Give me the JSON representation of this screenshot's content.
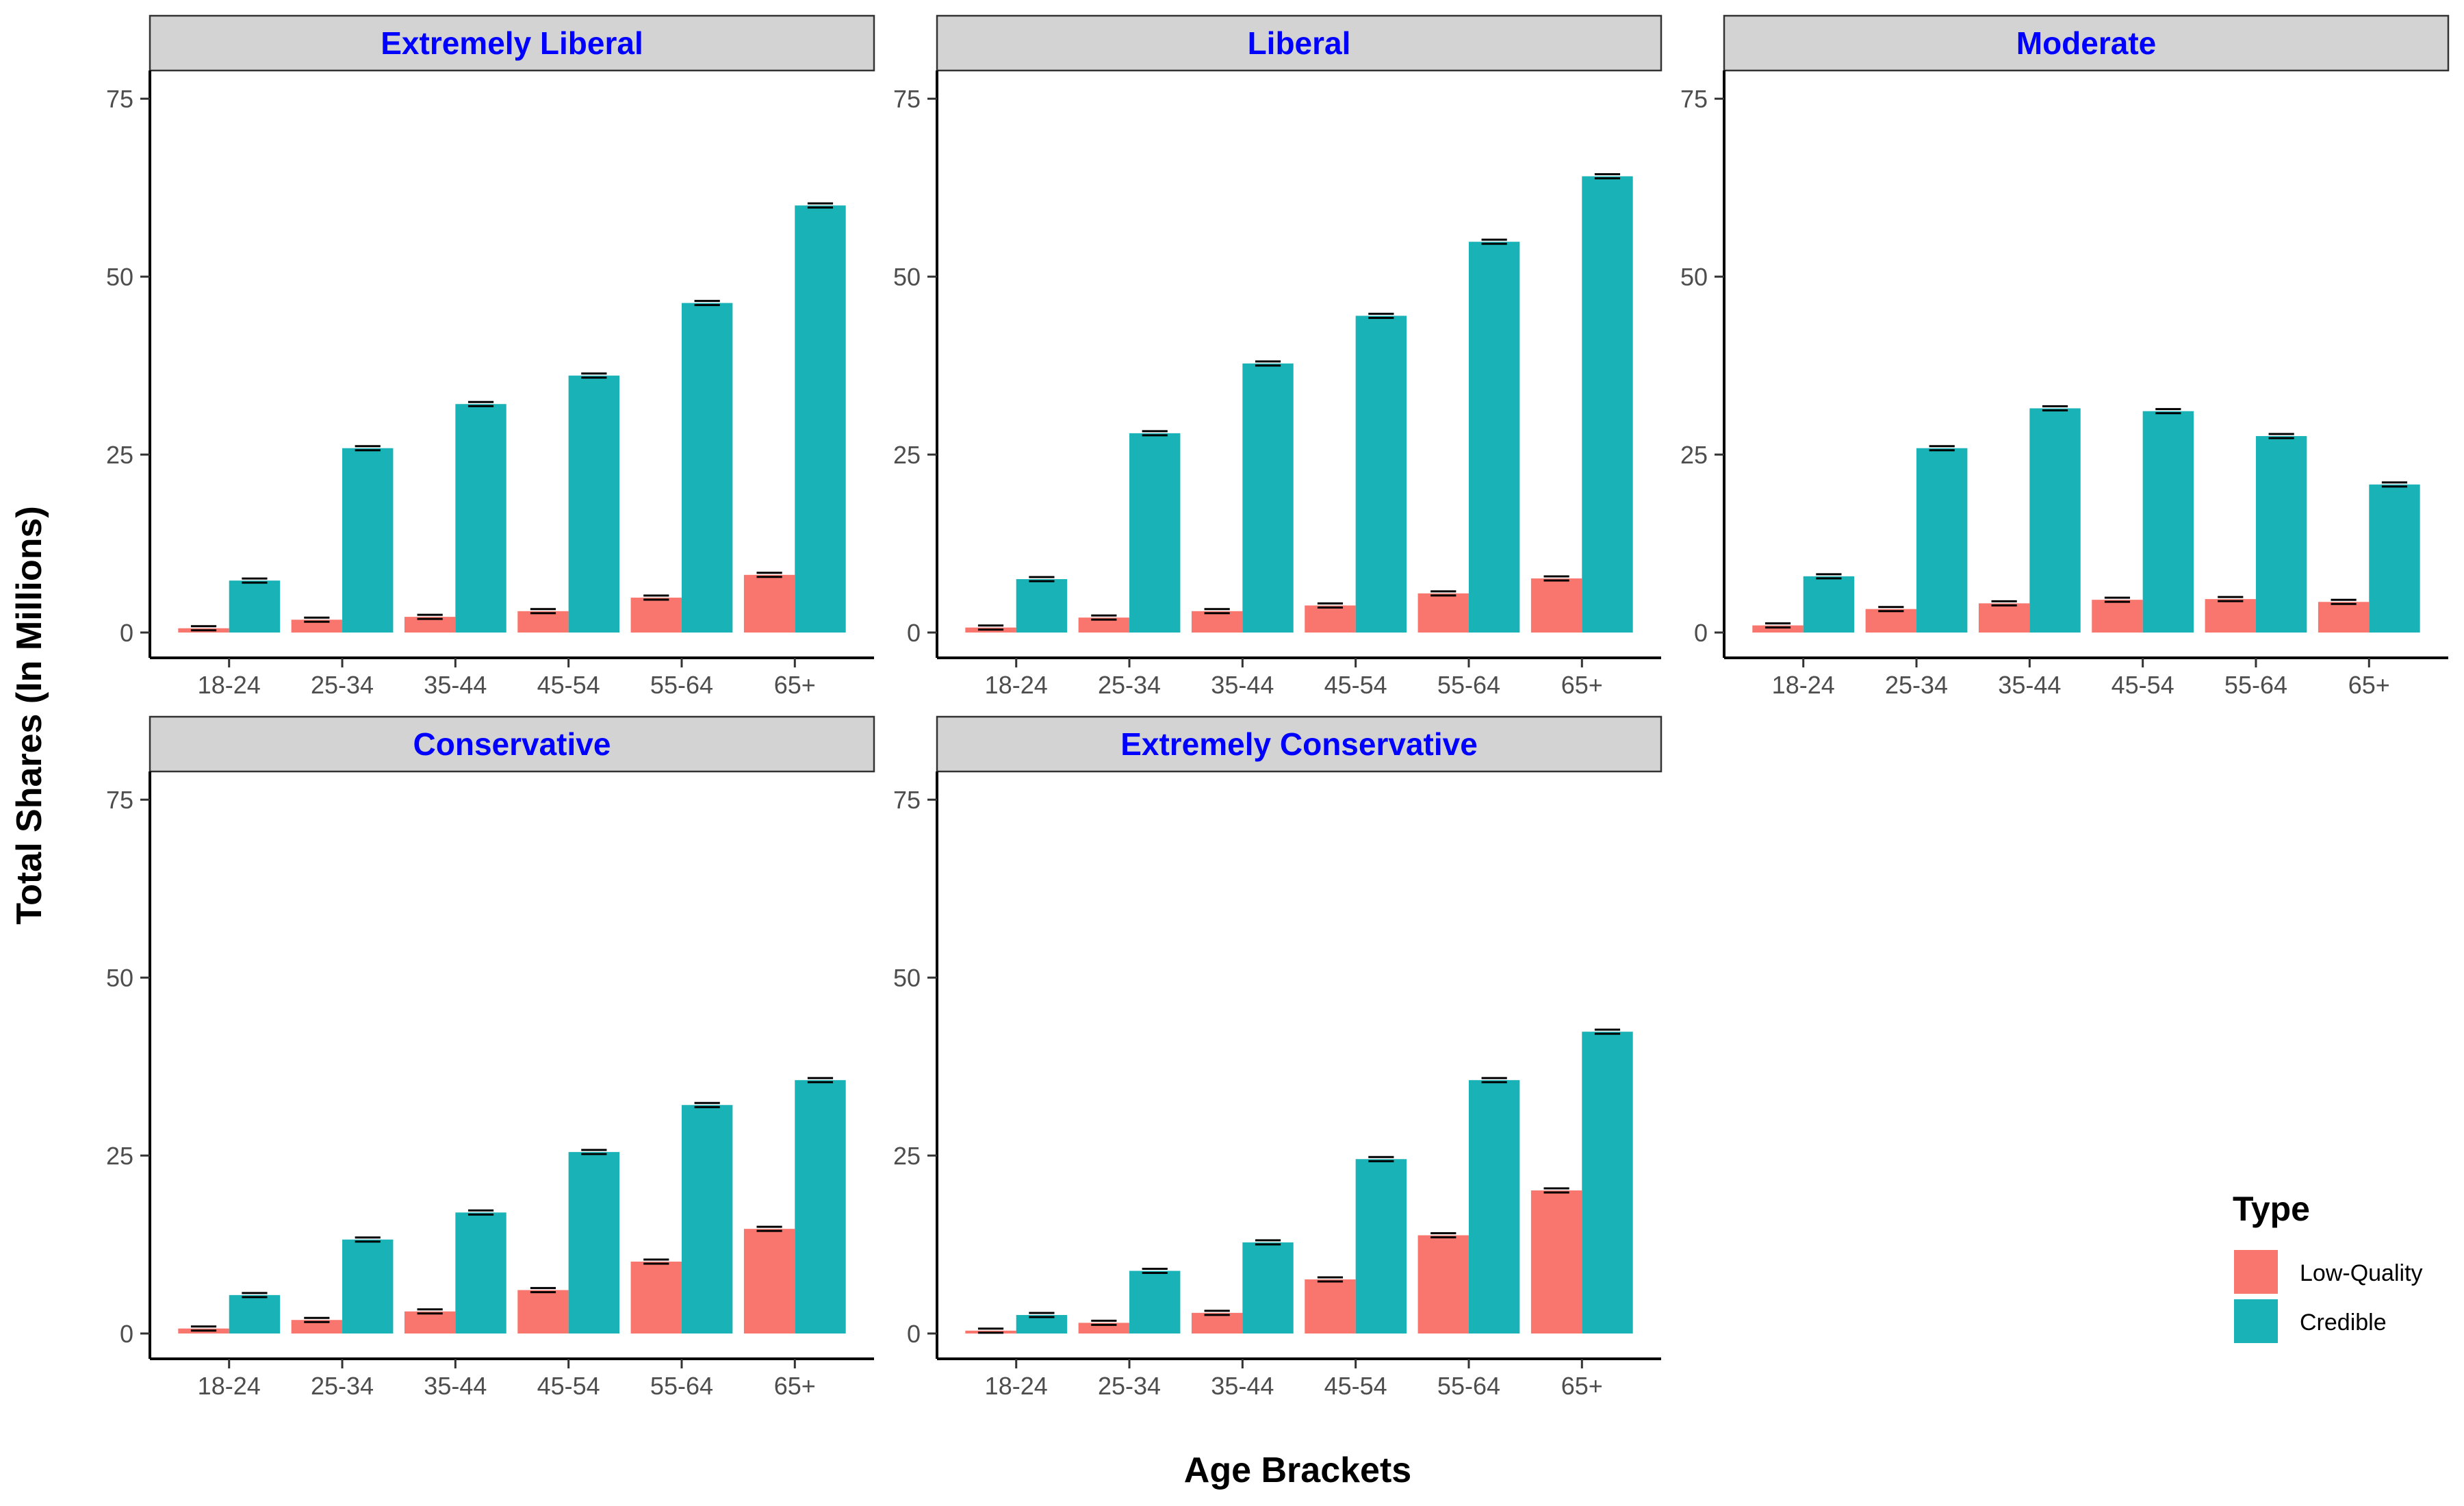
{
  "figure": {
    "ylabel": "Total Shares (In Millions)",
    "xlabel": "Age Brackets"
  },
  "legend": {
    "title": "Type",
    "items": [
      {
        "label": "Low-Quality",
        "color": "#f8766d"
      },
      {
        "label": "Credible",
        "color": "#19b3b7"
      }
    ]
  },
  "colors": {
    "low_quality": "#f8766d",
    "credible": "#19b3b7",
    "strip_fill": "#d3d3d3",
    "strip_text": "#0000ff"
  },
  "chart_data": {
    "type": "bar",
    "categories": [
      "18-24",
      "25-34",
      "35-44",
      "45-54",
      "55-64",
      "65+"
    ],
    "ylim": [
      0,
      78
    ],
    "yticks": [
      0,
      25,
      50,
      75
    ],
    "error_bars": true,
    "grid": false,
    "legend_position": "right",
    "panels": [
      {
        "title": "Extremely Liberal",
        "series": [
          {
            "name": "Low-Quality",
            "values": [
              0.6,
              1.8,
              2.2,
              3.0,
              4.9,
              8.1
            ]
          },
          {
            "name": "Credible",
            "values": [
              7.3,
              25.9,
              32.1,
              36.1,
              46.3,
              60.0
            ]
          }
        ]
      },
      {
        "title": "Liberal",
        "series": [
          {
            "name": "Low-Quality",
            "values": [
              0.7,
              2.1,
              3.0,
              3.8,
              5.5,
              7.6
            ]
          },
          {
            "name": "Credible",
            "values": [
              7.5,
              28.0,
              37.8,
              44.5,
              54.9,
              64.1
            ]
          }
        ]
      },
      {
        "title": "Moderate",
        "series": [
          {
            "name": "Low-Quality",
            "values": [
              1.0,
              3.3,
              4.1,
              4.6,
              4.7,
              4.3
            ]
          },
          {
            "name": "Credible",
            "values": [
              7.9,
              25.9,
              31.5,
              31.1,
              27.6,
              20.8
            ]
          }
        ]
      },
      {
        "title": "Conservative",
        "series": [
          {
            "name": "Low-Quality",
            "values": [
              0.7,
              1.9,
              3.1,
              6.1,
              10.1,
              14.7
            ]
          },
          {
            "name": "Credible",
            "values": [
              5.4,
              13.2,
              17.0,
              25.5,
              32.1,
              35.6
            ]
          }
        ]
      },
      {
        "title": "Extremely Conservative",
        "series": [
          {
            "name": "Low-Quality",
            "values": [
              0.4,
              1.5,
              2.9,
              7.6,
              13.8,
              20.1
            ]
          },
          {
            "name": "Credible",
            "values": [
              2.6,
              8.8,
              12.8,
              24.5,
              35.6,
              42.4
            ]
          }
        ]
      }
    ]
  }
}
